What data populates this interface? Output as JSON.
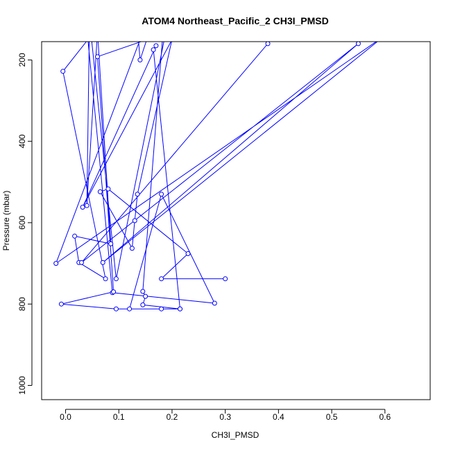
{
  "chart_data": {
    "type": "line",
    "title": "ATOM4 Northeast_Pacific_2 CH3I_PMSD",
    "xlabel": "CH3I_PMSD",
    "ylabel": "Pressure (mbar)",
    "xlim": [
      -0.045,
      0.685
    ],
    "ylim": [
      1035,
      155
    ],
    "y_reversed": true,
    "x_ticks": [
      "0.0",
      "0.1",
      "0.2",
      "0.3",
      "0.4",
      "0.5",
      "0.6"
    ],
    "x_tick_values": [
      0.0,
      0.1,
      0.2,
      0.3,
      0.4,
      0.5,
      0.6
    ],
    "y_ticks": [
      "200",
      "400",
      "600",
      "800",
      "1000"
    ],
    "y_tick_values": [
      200,
      400,
      600,
      800,
      1000
    ],
    "grid": false,
    "legend": "none",
    "series_color": "#0000ff",
    "marker": "open-circle",
    "series": [
      {
        "x": [
          0.3,
          0.18,
          0.23,
          0.08,
          0.065,
          0.125,
          0.13,
          0.135,
          0.2,
          0.032,
          0.17,
          0.165,
          0.215,
          0.145,
          0.15,
          0.145,
          0.185,
          0.19,
          0.095,
          0.045,
          0.04,
          0.06,
          0.085,
          0.017,
          0.025,
          0.075,
          -0.005,
          0.042,
          0.088,
          0.28,
          0.18,
          0.12,
          0.18,
          0.215,
          0.095,
          -0.008,
          0.09,
          0.06,
          0.175,
          0.135,
          0.14,
          0.16,
          0.18,
          0.14,
          -0.018,
          0.6,
          0.07,
          0.55,
          0.03,
          0.38
        ],
        "y": [
          738,
          738,
          676,
          517,
          524,
          663,
          595,
          530,
          150,
          562,
          165,
          175,
          812,
          802,
          781,
          769,
          100,
          120,
          738,
          100,
          558,
          130,
          652,
          633,
          698,
          738,
          228,
          150,
          772,
          798,
          530,
          812,
          812,
          812,
          812,
          800,
          770,
          192,
          140,
          120,
          200,
          120,
          140,
          150,
          700,
          140,
          698,
          160,
          698,
          160
        ]
      }
    ]
  }
}
